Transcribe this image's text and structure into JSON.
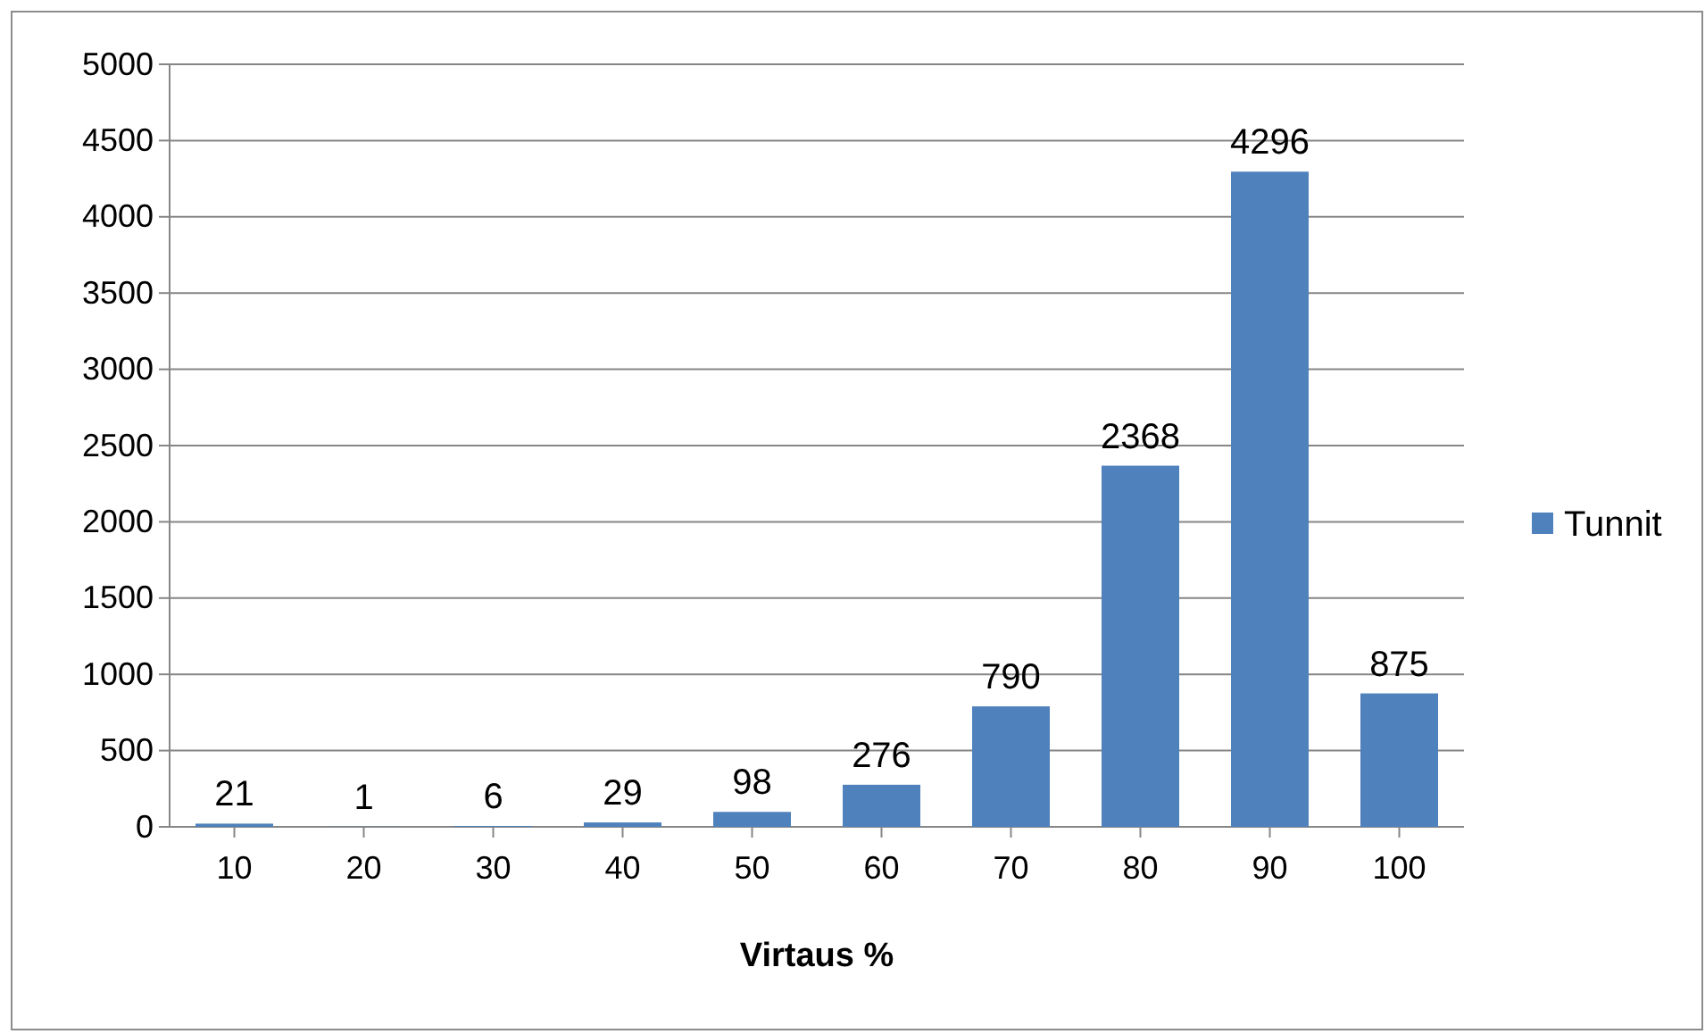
{
  "chart_data": {
    "type": "bar",
    "xlabel": "Virtaus %",
    "categories": [
      "10",
      "20",
      "30",
      "40",
      "50",
      "60",
      "70",
      "80",
      "90",
      "100"
    ],
    "series": [
      {
        "name": "Tunnit",
        "color": "#4f81bd",
        "values": [
          21,
          1,
          6,
          29,
          98,
          276,
          790,
          2368,
          4296,
          875
        ]
      }
    ],
    "ylim": [
      0,
      5000
    ],
    "yticks": [
      0,
      500,
      1000,
      1500,
      2000,
      2500,
      3000,
      3500,
      4000,
      4500,
      5000
    ],
    "grid": "y",
    "legend": "right",
    "data_labels": true
  }
}
